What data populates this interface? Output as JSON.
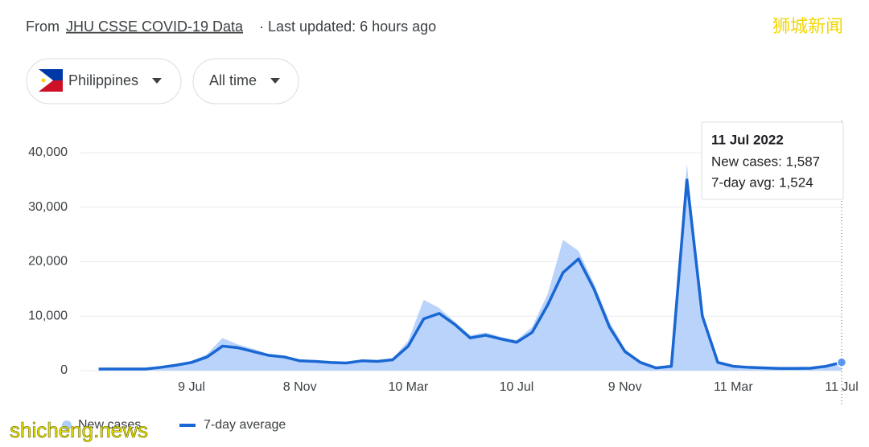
{
  "header": {
    "prefix": "From",
    "source": "JHU CSSE COVID-19 Data",
    "updated": "· Last updated: 6 hours ago"
  },
  "filters": [
    "Philippines",
    "All time"
  ],
  "watermarks": [
    "狮城新闻",
    "shicheng.news"
  ],
  "tooltip": {
    "title": "11 Jul 2022",
    "rows": [
      "New cases: 1,587",
      "7-day avg: 1,524"
    ]
  },
  "chart_data": {
    "type": "area-line",
    "categories": [
      null,
      null,
      null,
      null,
      null,
      null,
      "9 Jul",
      null,
      null,
      null,
      null,
      null,
      null,
      "8 Nov",
      null,
      null,
      null,
      null,
      null,
      null,
      "10 Mar",
      null,
      null,
      null,
      null,
      null,
      null,
      "10 Jul",
      null,
      null,
      null,
      null,
      null,
      null,
      "9 Nov",
      null,
      null,
      null,
      null,
      null,
      null,
      "11 Mar",
      null,
      null,
      null,
      null,
      null,
      null,
      "11 Jul"
    ],
    "series": [
      {
        "name": "New cases",
        "color": "#aecbfa",
        "values": [
          350,
          350,
          350,
          400,
          700,
          1200,
          1800,
          3000,
          6000,
          4800,
          4000,
          3000,
          2800,
          2000,
          1900,
          1700,
          1500,
          2000,
          1900,
          2300,
          5500,
          13000,
          11500,
          9000,
          6500,
          7000,
          6200,
          5600,
          8000,
          14000,
          24000,
          22000,
          16000,
          9000,
          4000,
          1700,
          600,
          1000,
          38000,
          11000,
          1700,
          900,
          700,
          550,
          450,
          450,
          500,
          900,
          1587
        ]
      },
      {
        "name": "7-day average",
        "color": "#1967d2",
        "values": [
          300,
          300,
          300,
          300,
          600,
          1000,
          1500,
          2500,
          4500,
          4200,
          3500,
          2800,
          2500,
          1800,
          1700,
          1500,
          1400,
          1800,
          1700,
          2000,
          4500,
          9500,
          10500,
          8500,
          6000,
          6500,
          5800,
          5200,
          7000,
          12000,
          18000,
          20500,
          15000,
          8000,
          3500,
          1500,
          500,
          800,
          35000,
          10000,
          1500,
          800,
          600,
          500,
          400,
          400,
          450,
          800,
          1524
        ]
      }
    ],
    "ylim": [
      0,
      40000
    ],
    "yticks": [
      0,
      {
        "value": 10000,
        "label": "10,000"
      },
      {
        "value": 20000,
        "label": "20,000"
      },
      {
        "value": 30000,
        "label": "30,000"
      },
      {
        "value": 40000,
        "label": "40,000"
      }
    ],
    "grid": true
  }
}
